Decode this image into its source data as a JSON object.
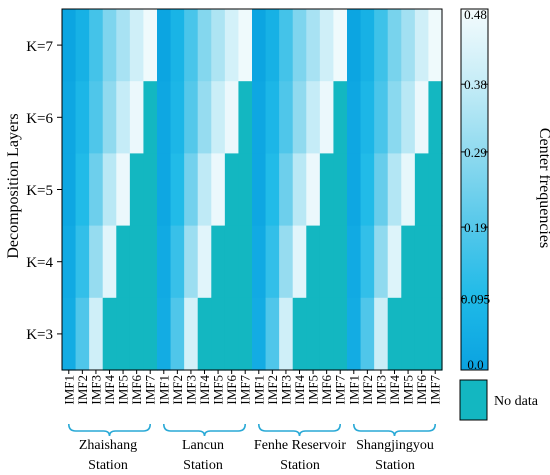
{
  "chart_data": {
    "type": "heatmap",
    "ylabel": "Decomposition Layers",
    "y_categories": [
      "K=7",
      "K=6",
      "K=5",
      "K=4",
      "K=3"
    ],
    "column_labels": [
      "IMF1",
      "IMF2",
      "IMF3",
      "IMF4",
      "IMF5",
      "IMF6",
      "IMF7"
    ],
    "stations": [
      {
        "name_line1": "Zhaishang",
        "name_line2": "Station",
        "values": {
          "K=7": [
            0.01,
            0.06,
            0.16,
            0.26,
            0.33,
            0.4,
            0.47
          ],
          "K=6": [
            0.02,
            0.08,
            0.18,
            0.29,
            0.38,
            0.46,
            null
          ],
          "K=5": [
            0.02,
            0.1,
            0.23,
            0.36,
            0.46,
            null,
            null
          ],
          "K=4": [
            0.03,
            0.13,
            0.3,
            0.44,
            null,
            null,
            null
          ],
          "K=3": [
            0.04,
            0.18,
            0.4,
            null,
            null,
            null,
            null
          ]
        }
      },
      {
        "name_line1": "Lancun",
        "name_line2": "Station",
        "values": {
          "K=7": [
            0.01,
            0.07,
            0.17,
            0.27,
            0.34,
            0.41,
            0.47
          ],
          "K=6": [
            0.02,
            0.08,
            0.19,
            0.3,
            0.39,
            0.46,
            null
          ],
          "K=5": [
            0.02,
            0.1,
            0.24,
            0.37,
            0.46,
            null,
            null
          ],
          "K=4": [
            0.03,
            0.14,
            0.31,
            0.44,
            null,
            null,
            null
          ],
          "K=3": [
            0.04,
            0.18,
            0.41,
            null,
            null,
            null,
            null
          ]
        }
      },
      {
        "name_line1": "Fenhe Reservoir",
        "name_line2": "Station",
        "values": {
          "K=7": [
            0.01,
            0.06,
            0.16,
            0.26,
            0.33,
            0.4,
            0.47
          ],
          "K=6": [
            0.02,
            0.08,
            0.18,
            0.29,
            0.38,
            0.46,
            null
          ],
          "K=5": [
            0.02,
            0.1,
            0.23,
            0.36,
            0.46,
            null,
            null
          ],
          "K=4": [
            0.03,
            0.13,
            0.3,
            0.44,
            null,
            null,
            null
          ],
          "K=3": [
            0.04,
            0.18,
            0.4,
            null,
            null,
            null,
            null
          ]
        }
      },
      {
        "name_line1": "Shangjingyou",
        "name_line2": "Station",
        "values": {
          "K=7": [
            0.01,
            0.06,
            0.15,
            0.25,
            0.32,
            0.4,
            0.47
          ],
          "K=6": [
            0.02,
            0.08,
            0.17,
            0.28,
            0.36,
            0.46,
            null
          ],
          "K=5": [
            0.02,
            0.1,
            0.22,
            0.35,
            0.45,
            null,
            null
          ],
          "K=4": [
            0.03,
            0.13,
            0.29,
            0.43,
            null,
            null,
            null
          ],
          "K=3": [
            0.04,
            0.18,
            0.39,
            null,
            null,
            null,
            null
          ]
        }
      }
    ],
    "colorbar": {
      "label": "Center frequencies",
      "range": [
        0.0,
        0.48
      ],
      "tick_values": [
        0.0,
        0.095,
        0.19,
        0.29,
        0.38,
        0.48
      ],
      "tick_labels": [
        "0.0",
        "0.095",
        "0.19",
        "0.29",
        "0.38",
        "0.48"
      ],
      "colors": [
        "#0aa2e0",
        "#1fbae8",
        "#56c8ea",
        "#8fdaef",
        "#c7edf7",
        "#f4fbfd"
      ]
    },
    "no_data": {
      "label": "No data",
      "color": "#13b7c1"
    },
    "colors": {
      "bracket": "#29a9d6",
      "axis": "#000000"
    }
  }
}
